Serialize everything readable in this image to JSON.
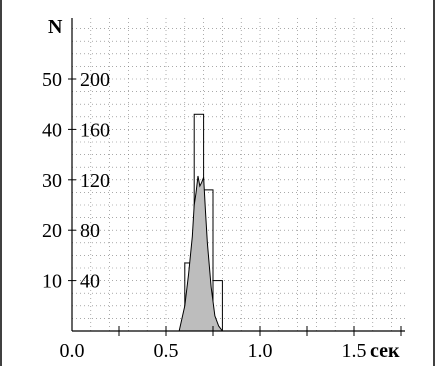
{
  "chart_data": {
    "type": "bar",
    "title": "",
    "ylabel": "N",
    "xlabel": "сек",
    "xlim": [
      0,
      2.0
    ],
    "x_ticks": [
      0.0,
      0.5,
      1.0,
      1.5
    ],
    "x_tick_labels": [
      "0.0",
      "0.5",
      "1.0",
      "1.5"
    ],
    "left_axis": {
      "ticks": [
        10,
        20,
        30,
        40,
        50
      ],
      "labels": [
        "10",
        "20",
        "30",
        "40",
        "50"
      ],
      "ylim": [
        0,
        60
      ]
    },
    "right_axis": {
      "ticks": [
        40,
        80,
        120,
        160,
        200
      ],
      "labels": [
        "40",
        "80",
        "120",
        "160",
        "200"
      ],
      "ylim": [
        0,
        240
      ]
    },
    "grid": true,
    "series": [
      {
        "style": "outline-bars",
        "axis": "left",
        "bin_width": 0.05,
        "x": [
          0.5,
          0.55,
          0.6,
          0.65,
          0.7,
          0.75,
          0.8
        ],
        "values": [
          0,
          0,
          13.5,
          43,
          28,
          10,
          0
        ]
      },
      {
        "style": "filled-area",
        "axis": "right",
        "x": [
          0.57,
          0.6,
          0.62,
          0.64,
          0.65,
          0.66,
          0.67,
          0.68,
          0.69,
          0.7,
          0.71,
          0.72,
          0.74,
          0.76,
          0.78,
          0.8
        ],
        "values": [
          0,
          20,
          45,
          75,
          100,
          110,
          123,
          115,
          118,
          122,
          95,
          70,
          35,
          12,
          4,
          0
        ]
      }
    ]
  }
}
